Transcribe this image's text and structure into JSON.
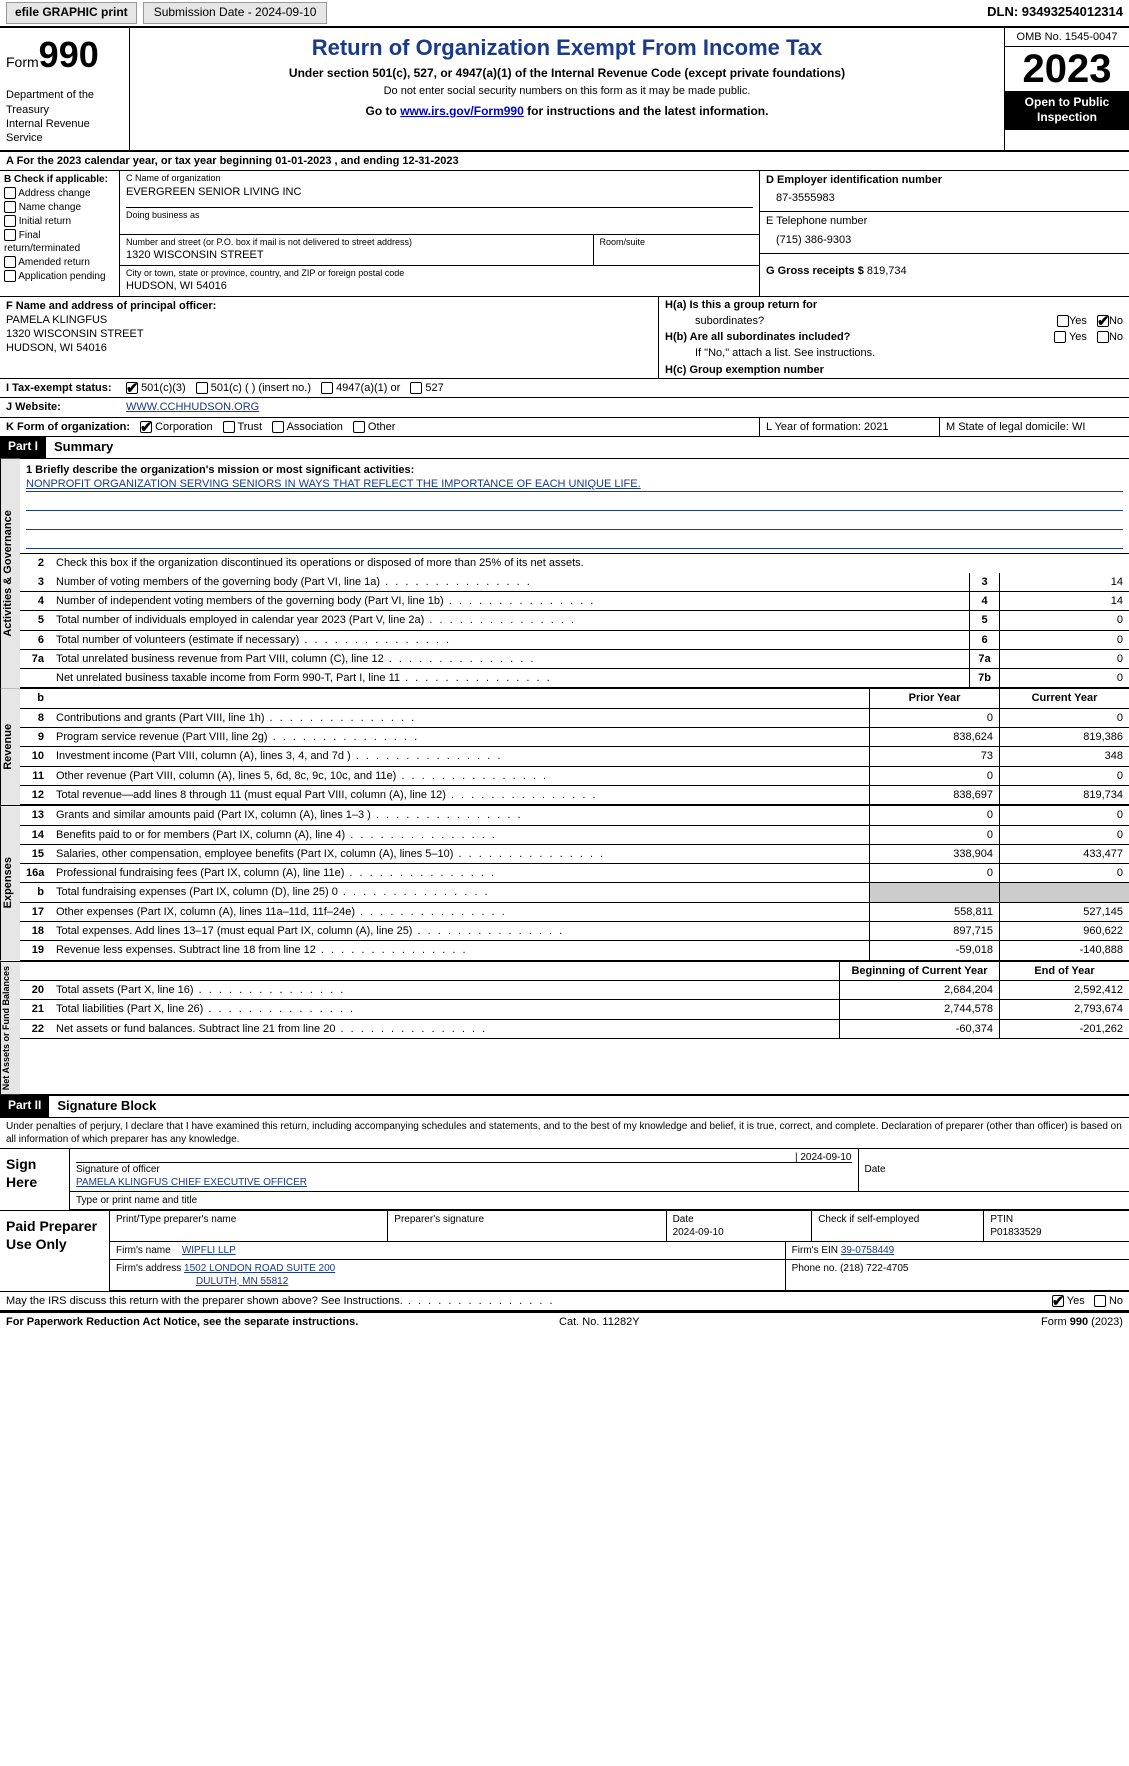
{
  "topbar": {
    "efile": "efile GRAPHIC print",
    "submission": "Submission Date - 2024-09-10",
    "dln": "DLN: 93493254012314"
  },
  "header": {
    "form_label": "Form",
    "form_num": "990",
    "dept": "Department of the Treasury",
    "irs": "Internal Revenue Service",
    "title": "Return of Organization Exempt From Income Tax",
    "subtitle": "Under section 501(c), 527, or 4947(a)(1) of the Internal Revenue Code (except private foundations)",
    "note": "Do not enter social security numbers on this form as it may be made public.",
    "goto_prefix": "Go to ",
    "goto_link": "www.irs.gov/Form990",
    "goto_suffix": " for instructions and the latest information.",
    "omb": "OMB No. 1545-0047",
    "year": "2023",
    "open": "Open to Public Inspection"
  },
  "row_a": "A For the 2023 calendar year, or tax year beginning 01-01-2023   , and ending 12-31-2023",
  "box_b": {
    "hdr": "B Check if applicable:",
    "items": [
      "Address change",
      "Name change",
      "Initial return",
      "Final return/terminated",
      "Amended return",
      "Application pending"
    ]
  },
  "box_c": {
    "name_lbl": "C Name of organization",
    "name": "EVERGREEN SENIOR LIVING INC",
    "dba_lbl": "Doing business as",
    "street_lbl": "Number and street (or P.O. box if mail is not delivered to street address)",
    "street": "1320 WISCONSIN STREET",
    "room_lbl": "Room/suite",
    "city_lbl": "City or town, state or province, country, and ZIP or foreign postal code",
    "city": "HUDSON, WI  54016"
  },
  "box_d": {
    "lbl": "D Employer identification number",
    "val": "87-3555983"
  },
  "box_e": {
    "lbl": "E Telephone number",
    "val": "(715) 386-9303"
  },
  "box_g": {
    "lbl": "G Gross receipts $",
    "val": "819,734"
  },
  "box_f": {
    "lbl": "F  Name and address of principal officer:",
    "name": "PAMELA KLINGFUS",
    "street": "1320 WISCONSIN STREET",
    "city": "HUDSON, WI  54016"
  },
  "box_h": {
    "a_lbl": "H(a)  Is this a group return for",
    "a_lbl2": "subordinates?",
    "b_lbl": "H(b)  Are all subordinates included?",
    "b_note": "If \"No,\" attach a list. See instructions.",
    "c_lbl": "H(c)  Group exemption number"
  },
  "line_i": {
    "lbl": "I   Tax-exempt status:",
    "opts": [
      "501(c)(3)",
      "501(c) (  ) (insert no.)",
      "4947(a)(1) or",
      "527"
    ]
  },
  "line_j": {
    "lbl": "J   Website:",
    "val": "WWW.CCHHUDSON.ORG"
  },
  "line_k": {
    "lbl": "K Form of organization:",
    "opts": [
      "Corporation",
      "Trust",
      "Association",
      "Other"
    ]
  },
  "line_l": "L Year of formation: 2021",
  "line_m": "M State of legal domicile: WI",
  "part1": {
    "hdr": "Part I",
    "title": "Summary",
    "vtab_ag": "Activities & Governance",
    "vtab_rev": "Revenue",
    "vtab_exp": "Expenses",
    "vtab_na": "Net Assets or Fund Balances",
    "q1_lbl": "1   Briefly describe the organization's mission or most significant activities:",
    "q1_val": "NONPROFIT ORGANIZATION SERVING SENIORS IN WAYS THAT REFLECT THE IMPORTANCE OF EACH UNIQUE LIFE.",
    "q2": "Check this box        if the organization discontinued its operations or disposed of more than 25% of its net assets.",
    "rows_ag": [
      {
        "n": "3",
        "t": "Number of voting members of the governing body (Part VI, line 1a)",
        "nb": "3",
        "v": "14"
      },
      {
        "n": "4",
        "t": "Number of independent voting members of the governing body (Part VI, line 1b)",
        "nb": "4",
        "v": "14"
      },
      {
        "n": "5",
        "t": "Total number of individuals employed in calendar year 2023 (Part V, line 2a)",
        "nb": "5",
        "v": "0"
      },
      {
        "n": "6",
        "t": "Total number of volunteers (estimate if necessary)",
        "nb": "6",
        "v": "0"
      },
      {
        "n": "7a",
        "t": "Total unrelated business revenue from Part VIII, column (C), line 12",
        "nb": "7a",
        "v": "0"
      },
      {
        "n": "",
        "t": "Net unrelated business taxable income from Form 990-T, Part I, line 11",
        "nb": "7b",
        "v": "0"
      }
    ],
    "col_hdrs": {
      "b": "b",
      "prior": "Prior Year",
      "current": "Current Year"
    },
    "rows_rev": [
      {
        "n": "8",
        "t": "Contributions and grants (Part VIII, line 1h)",
        "p": "0",
        "c": "0"
      },
      {
        "n": "9",
        "t": "Program service revenue (Part VIII, line 2g)",
        "p": "838,624",
        "c": "819,386"
      },
      {
        "n": "10",
        "t": "Investment income (Part VIII, column (A), lines 3, 4, and 7d )",
        "p": "73",
        "c": "348"
      },
      {
        "n": "11",
        "t": "Other revenue (Part VIII, column (A), lines 5, 6d, 8c, 9c, 10c, and 11e)",
        "p": "0",
        "c": "0"
      },
      {
        "n": "12",
        "t": "Total revenue—add lines 8 through 11 (must equal Part VIII, column (A), line 12)",
        "p": "838,697",
        "c": "819,734"
      }
    ],
    "rows_exp": [
      {
        "n": "13",
        "t": "Grants and similar amounts paid (Part IX, column (A), lines 1–3 )",
        "p": "0",
        "c": "0"
      },
      {
        "n": "14",
        "t": "Benefits paid to or for members (Part IX, column (A), line 4)",
        "p": "0",
        "c": "0"
      },
      {
        "n": "15",
        "t": "Salaries, other compensation, employee benefits (Part IX, column (A), lines 5–10)",
        "p": "338,904",
        "c": "433,477"
      },
      {
        "n": "16a",
        "t": "Professional fundraising fees (Part IX, column (A), line 11e)",
        "p": "0",
        "c": "0"
      },
      {
        "n": "b",
        "t": "Total fundraising expenses (Part IX, column (D), line 25) 0",
        "p": "",
        "c": "",
        "shade": true
      },
      {
        "n": "17",
        "t": "Other expenses (Part IX, column (A), lines 11a–11d, 11f–24e)",
        "p": "558,811",
        "c": "527,145"
      },
      {
        "n": "18",
        "t": "Total expenses. Add lines 13–17 (must equal Part IX, column (A), line 25)",
        "p": "897,715",
        "c": "960,622"
      },
      {
        "n": "19",
        "t": "Revenue less expenses. Subtract line 18 from line 12",
        "p": "-59,018",
        "c": "-140,888"
      }
    ],
    "col_hdrs2": {
      "begin": "Beginning of Current Year",
      "end": "End of Year"
    },
    "rows_na": [
      {
        "n": "20",
        "t": "Total assets (Part X, line 16)",
        "p": "2,684,204",
        "c": "2,592,412"
      },
      {
        "n": "21",
        "t": "Total liabilities (Part X, line 26)",
        "p": "2,744,578",
        "c": "2,793,674"
      },
      {
        "n": "22",
        "t": "Net assets or fund balances. Subtract line 21 from line 20",
        "p": "-60,374",
        "c": "-201,262"
      }
    ]
  },
  "part2": {
    "hdr": "Part II",
    "title": "Signature Block",
    "penalty": "Under penalties of perjury, I declare that I have examined this return, including accompanying schedules and statements, and to the best of my knowledge and belief, it is true, correct, and complete. Declaration of preparer (other than officer) is based on all information of which preparer has any knowledge.",
    "sign_here": "Sign Here",
    "date": "2024-09-10",
    "sig_officer_lbl": "Signature of officer",
    "sig_officer": "PAMELA KLINGFUS CHIEF EXECUTIVE OFFICER",
    "date_lbl": "Date",
    "type_lbl": "Type or print name and title",
    "paid": "Paid Preparer Use Only",
    "prep_name_lbl": "Print/Type preparer's name",
    "prep_sig_lbl": "Preparer's signature",
    "prep_date_lbl": "Date",
    "prep_date": "2024-09-10",
    "check_self": "Check        if self-employed",
    "ptin_lbl": "PTIN",
    "ptin": "P01833529",
    "firm_name_lbl": "Firm's name",
    "firm_name": "WIPFLI LLP",
    "firm_ein_lbl": "Firm's EIN",
    "firm_ein": "39-0758449",
    "firm_addr_lbl": "Firm's address",
    "firm_addr1": "1502 LONDON ROAD SUITE 200",
    "firm_addr2": "DULUTH, MN  55812",
    "phone_lbl": "Phone no.",
    "phone": "(218) 722-4705",
    "discuss": "May the IRS discuss this return with the preparer shown above? See Instructions."
  },
  "footer": {
    "pra": "For Paperwork Reduction Act Notice, see the separate instructions.",
    "cat": "Cat. No. 11282Y",
    "form": "Form 990 (2023)"
  },
  "yn": {
    "yes": "Yes",
    "no": "No"
  }
}
